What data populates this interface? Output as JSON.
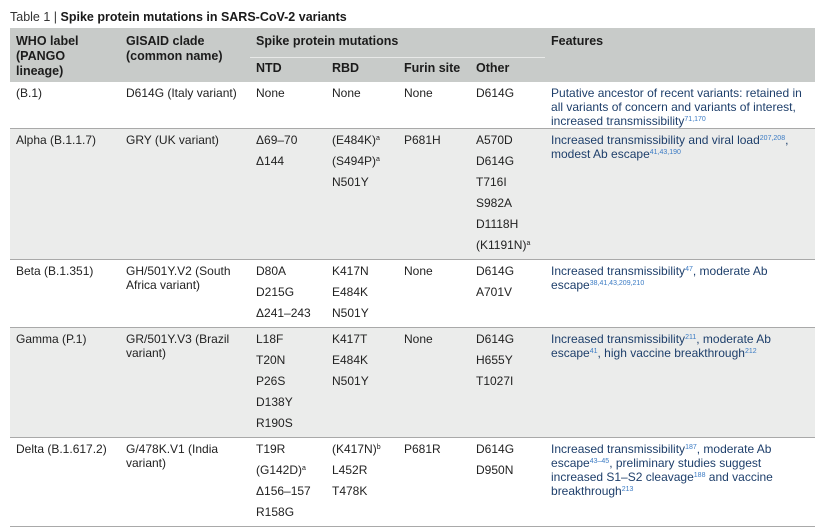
{
  "caption": {
    "label": "Table 1 | ",
    "title": "Spike protein mutations in SARS-CoV-2 variants"
  },
  "headers": {
    "who": "WHO label (PANGO lineage)",
    "gisaid": "GISAID clade (common name)",
    "spike": "Spike protein mutations",
    "features": "Features",
    "sub": [
      "NTD",
      "RBD",
      "Furin site",
      "Other"
    ]
  },
  "rows": [
    {
      "who": "(B.1)",
      "gisaid": "D614G (Italy variant)",
      "ntd": [
        {
          "t": "None",
          "n": ""
        }
      ],
      "rbd": [
        {
          "t": "None",
          "n": ""
        }
      ],
      "furin": [
        {
          "t": "None",
          "n": ""
        }
      ],
      "other": [
        {
          "t": "D614G",
          "n": ""
        }
      ],
      "features": [
        {
          "t": "Putative ancestor of recent variants: retained in all variants of concern and variants of interest, increased transmissibility",
          "r": "71,170"
        }
      ]
    },
    {
      "who": "Alpha (B.1.1.7)",
      "gisaid": "GRY (UK variant)",
      "ntd": [
        {
          "t": "Δ69–70",
          "n": ""
        },
        {
          "t": "Δ144",
          "n": ""
        }
      ],
      "rbd": [
        {
          "t": "(E484K)",
          "n": "a"
        },
        {
          "t": "(S494P)",
          "n": "a"
        },
        {
          "t": "N501Y",
          "n": ""
        }
      ],
      "furin": [
        {
          "t": "P681H",
          "n": ""
        }
      ],
      "other": [
        {
          "t": "A570D",
          "n": ""
        },
        {
          "t": "D614G",
          "n": ""
        },
        {
          "t": "T716I",
          "n": ""
        },
        {
          "t": "S982A",
          "n": ""
        },
        {
          "t": "D1118H",
          "n": ""
        },
        {
          "t": "(K1191N)",
          "n": "a"
        }
      ],
      "features": [
        {
          "t": "Increased transmissibility and viral load",
          "r": "207,208"
        },
        {
          "t": ", modest Ab escape",
          "r": "41,43,190"
        }
      ]
    },
    {
      "who": "Beta (B.1.351)",
      "gisaid": "GH/501Y.V2 (South Africa variant)",
      "ntd": [
        {
          "t": "D80A",
          "n": ""
        },
        {
          "t": "D215G",
          "n": ""
        },
        {
          "t": "Δ241–243",
          "n": ""
        }
      ],
      "rbd": [
        {
          "t": "K417N",
          "n": ""
        },
        {
          "t": "E484K",
          "n": ""
        },
        {
          "t": "N501Y",
          "n": ""
        }
      ],
      "furin": [
        {
          "t": "None",
          "n": ""
        }
      ],
      "other": [
        {
          "t": "D614G",
          "n": ""
        },
        {
          "t": "A701V",
          "n": ""
        }
      ],
      "features": [
        {
          "t": "Increased transmissibility",
          "r": "47"
        },
        {
          "t": ", moderate Ab escape",
          "r": "38,41,43,209,210"
        }
      ]
    },
    {
      "who": "Gamma (P.1)",
      "gisaid": "GR/501Y.V3 (Brazil variant)",
      "ntd": [
        {
          "t": "L18F",
          "n": ""
        },
        {
          "t": "T20N",
          "n": ""
        },
        {
          "t": "P26S",
          "n": ""
        },
        {
          "t": "D138Y",
          "n": ""
        },
        {
          "t": "R190S",
          "n": ""
        }
      ],
      "rbd": [
        {
          "t": "K417T",
          "n": ""
        },
        {
          "t": "E484K",
          "n": ""
        },
        {
          "t": "N501Y",
          "n": ""
        }
      ],
      "furin": [
        {
          "t": "None",
          "n": ""
        }
      ],
      "other": [
        {
          "t": "D614G",
          "n": ""
        },
        {
          "t": "H655Y",
          "n": ""
        },
        {
          "t": "T1027I",
          "n": ""
        }
      ],
      "features": [
        {
          "t": "Increased transmissibility",
          "r": "211"
        },
        {
          "t": ", moderate Ab escape",
          "r": "41"
        },
        {
          "t": ", high vaccine breakthrough",
          "r": "212"
        }
      ]
    },
    {
      "who": "Delta (B.1.617.2)",
      "gisaid": "G/478K.V1 (India variant)",
      "ntd": [
        {
          "t": "T19R",
          "n": ""
        },
        {
          "t": "(G142D)",
          "n": "a"
        },
        {
          "t": "Δ156–157",
          "n": ""
        },
        {
          "t": "R158G",
          "n": ""
        }
      ],
      "rbd": [
        {
          "t": "(K417N)",
          "n": "b"
        },
        {
          "t": "L452R",
          "n": ""
        },
        {
          "t": "T478K",
          "n": ""
        }
      ],
      "furin": [
        {
          "t": "P681R",
          "n": ""
        }
      ],
      "other": [
        {
          "t": "D614G",
          "n": ""
        },
        {
          "t": "D950N",
          "n": ""
        }
      ],
      "features": [
        {
          "t": "Increased transmissibility",
          "r": "187"
        },
        {
          "t": ", moderate Ab escape",
          "r": "43–45"
        },
        {
          "t": ", preliminary studies suggest increased S1–S2 cleavage",
          "r": "188"
        },
        {
          "t": " and vaccine breakthrough",
          "r": "213"
        }
      ]
    }
  ]
}
